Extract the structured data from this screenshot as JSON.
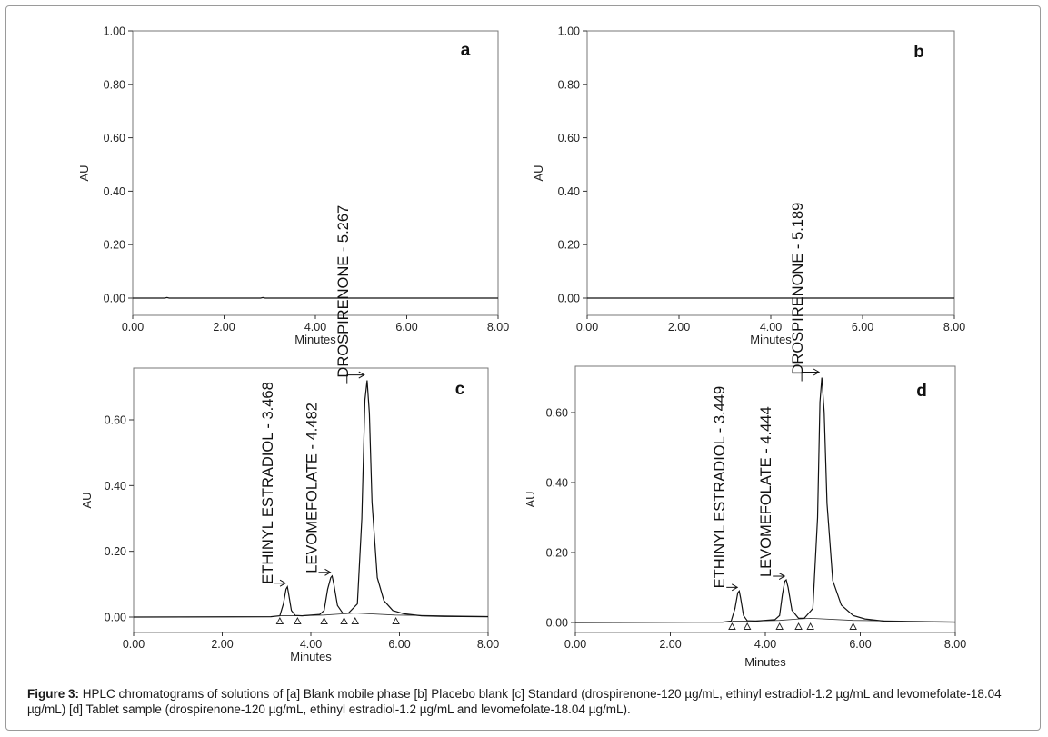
{
  "figure": {
    "caption_label": "Figure 3:",
    "caption_text": " HPLC chromatograms of solutions of [a] Blank mobile phase [b] Placebo blank [c] Standard (drospirenone-120 µg/mL, ethinyl estradiol-1.2 µg/mL and levomefolate-18.04 µg/mL) [d] Tablet sample (drospirenone-120 µg/mL, ethinyl estradiol-1.2 µg/mL and levomefolate-18.04 µg/mL)."
  },
  "chart_data": [
    {
      "id": "a",
      "type": "line",
      "panel_label": "a",
      "xlabel": "Minutes",
      "ylabel": "AU",
      "xlim": [
        0,
        8
      ],
      "ylim": [
        0,
        1
      ],
      "xticks": [
        "0.00",
        "2.00",
        "4.00",
        "6.00",
        "8.00"
      ],
      "yticks": [
        {
          "value": 0.0,
          "label": "0.00"
        },
        {
          "value": 0.2,
          "label": "0.20"
        },
        {
          "value": 0.4,
          "label": "0.40"
        },
        {
          "value": 0.6,
          "label": "0.60"
        },
        {
          "value": 0.8,
          "label": "0.80"
        },
        {
          "value": 1.0,
          "label": "1.00"
        }
      ],
      "grid": false,
      "series": [
        {
          "x": [
            0,
            0.7,
            0.75,
            0.8,
            2.8,
            2.85,
            2.9,
            8
          ],
          "y": [
            0,
            0,
            0.002,
            0,
            0,
            0.002,
            0,
            0
          ]
        }
      ],
      "peaks": [],
      "markers": []
    },
    {
      "id": "b",
      "type": "line",
      "panel_label": "b",
      "xlabel": "Minutes",
      "ylabel": "AU",
      "xlim": [
        0,
        8
      ],
      "ylim": [
        0,
        1
      ],
      "xticks": [
        "0.00",
        "2.00",
        "4.00",
        "6.00",
        "8.00"
      ],
      "yticks": [
        {
          "value": 0.0,
          "label": "0.00"
        },
        {
          "value": 0.2,
          "label": "0.20"
        },
        {
          "value": 0.4,
          "label": "0.40"
        },
        {
          "value": 0.6,
          "label": "0.60"
        },
        {
          "value": 0.8,
          "label": "0.80"
        },
        {
          "value": 1.0,
          "label": "1.00"
        }
      ],
      "grid": false,
      "series": [
        {
          "x": [
            0,
            8
          ],
          "y": [
            0,
            0
          ]
        }
      ],
      "peaks": [],
      "markers": []
    },
    {
      "id": "c",
      "type": "line",
      "panel_label": "c",
      "xlabel": "Minutes",
      "ylabel": "AU",
      "xlim": [
        0,
        8
      ],
      "ylim": [
        -0.02,
        0.75
      ],
      "xticks": [
        "0.00",
        "2.00",
        "4.00",
        "6.00",
        "8.00"
      ],
      "yticks": [
        {
          "value": 0.0,
          "label": "0.00"
        },
        {
          "value": 0.2,
          "label": "0.20"
        },
        {
          "value": 0.4,
          "label": "0.40"
        },
        {
          "value": 0.6,
          "label": "0.60"
        }
      ],
      "grid": false,
      "series": [
        {
          "x": [
            0,
            3.1,
            3.3,
            3.38,
            3.44,
            3.47,
            3.5,
            3.56,
            3.65,
            3.8,
            4.2,
            4.3,
            4.38,
            4.45,
            4.48,
            4.52,
            4.6,
            4.72,
            4.85,
            5.05,
            5.15,
            5.22,
            5.27,
            5.32,
            5.38,
            5.5,
            5.65,
            5.85,
            6.1,
            6.5,
            7.0,
            8.0
          ],
          "y": [
            0,
            0.001,
            0.004,
            0.04,
            0.085,
            0.092,
            0.07,
            0.02,
            0.005,
            0.004,
            0.008,
            0.02,
            0.085,
            0.12,
            0.125,
            0.1,
            0.035,
            0.012,
            0.012,
            0.04,
            0.3,
            0.66,
            0.72,
            0.62,
            0.35,
            0.12,
            0.05,
            0.02,
            0.01,
            0.004,
            0.002,
            0.001
          ]
        }
      ],
      "baseline": {
        "x": [
          3.3,
          3.7,
          4.3,
          4.75,
          5.0,
          5.9,
          8.0
        ],
        "y": [
          0.004,
          0.004,
          0.006,
          0.01,
          0.012,
          0.006,
          0.002
        ]
      },
      "markers": [
        3.3,
        3.7,
        4.3,
        4.75,
        5.0,
        5.92
      ],
      "peaks": [
        {
          "label": "ETHINYL ESTRADIOL - 3.468",
          "rt": 3.468,
          "apex": 0.092
        },
        {
          "label": "LEVOMEFOLATE - 4.482",
          "rt": 4.482,
          "apex": 0.125
        },
        {
          "label": "DROSPIRENONE - 5.267",
          "rt": 5.267,
          "apex": 0.72
        }
      ]
    },
    {
      "id": "d",
      "type": "line",
      "panel_label": "d",
      "xlabel": "Minutes",
      "ylabel": "AU",
      "xlim": [
        0,
        8
      ],
      "ylim": [
        -0.02,
        0.73
      ],
      "xticks": [
        "0.00",
        "2.00",
        "4.00",
        "6.00",
        "8.00"
      ],
      "yticks": [
        {
          "value": 0.0,
          "label": "0.00"
        },
        {
          "value": 0.2,
          "label": "0.20"
        },
        {
          "value": 0.4,
          "label": "0.40"
        },
        {
          "value": 0.6,
          "label": "0.60"
        }
      ],
      "grid": false,
      "series": [
        {
          "x": [
            0,
            3.1,
            3.28,
            3.36,
            3.42,
            3.45,
            3.48,
            3.54,
            3.62,
            3.8,
            4.2,
            4.3,
            4.36,
            4.41,
            4.44,
            4.48,
            4.56,
            4.7,
            4.82,
            5.0,
            5.1,
            5.15,
            5.19,
            5.24,
            5.3,
            5.42,
            5.6,
            5.85,
            6.1,
            6.5,
            7.0,
            8.0
          ],
          "y": [
            0,
            0.001,
            0.004,
            0.04,
            0.085,
            0.09,
            0.07,
            0.02,
            0.005,
            0.004,
            0.008,
            0.02,
            0.08,
            0.118,
            0.122,
            0.1,
            0.035,
            0.012,
            0.012,
            0.04,
            0.3,
            0.63,
            0.7,
            0.6,
            0.34,
            0.12,
            0.05,
            0.02,
            0.01,
            0.004,
            0.002,
            0.001
          ]
        }
      ],
      "baseline": {
        "x": [
          3.3,
          3.62,
          4.3,
          4.7,
          4.95,
          5.85,
          8.0
        ],
        "y": [
          0.004,
          0.004,
          0.006,
          0.01,
          0.012,
          0.006,
          0.002
        ]
      },
      "markers": [
        3.3,
        3.62,
        4.3,
        4.7,
        4.95,
        5.85
      ],
      "peaks": [
        {
          "label": "ETHINYL ESTRADIOL - 3.449",
          "rt": 3.449,
          "apex": 0.09
        },
        {
          "label": "LEVOMEFOLATE - 4.444",
          "rt": 4.444,
          "apex": 0.122
        },
        {
          "label": "DROSPIRENONE - 5.189",
          "rt": 5.189,
          "apex": 0.7
        }
      ]
    }
  ]
}
